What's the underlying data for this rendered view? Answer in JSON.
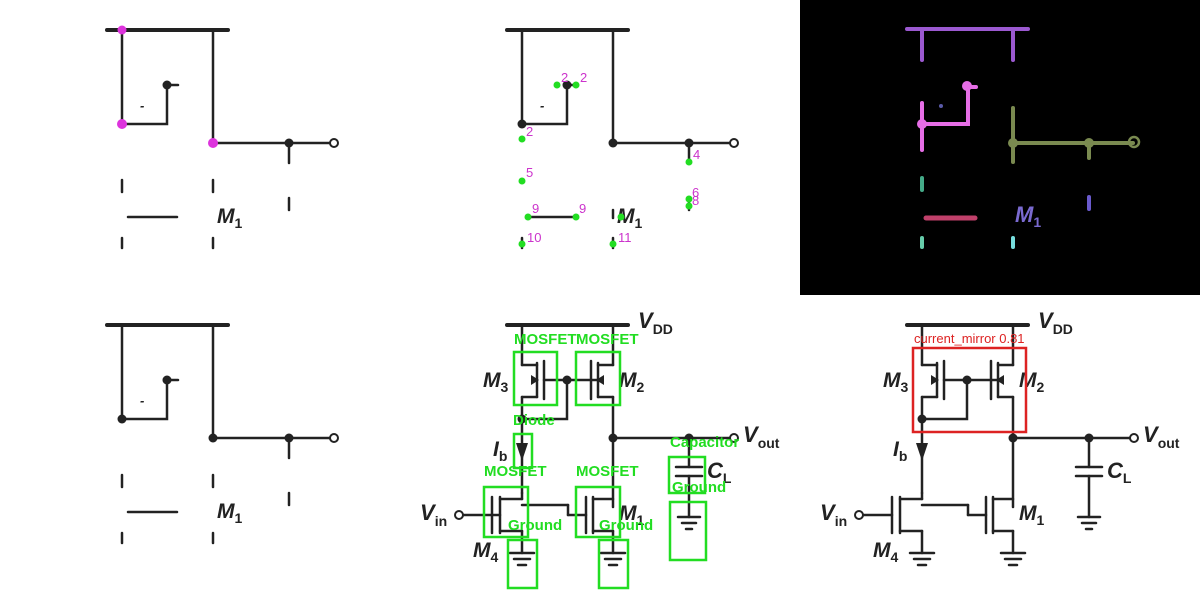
{
  "colors": {
    "ink": "#222222",
    "keypoint": "#dd33dd",
    "detect": "#22dd22",
    "mask_bg": "#000000",
    "group_box": "#dd2222",
    "mask_top": "#9b59d0",
    "mask_pink": "#e66ee6",
    "mask_olive": "#7a8a50",
    "mask_red": "#c0406a"
  },
  "circuit": {
    "m1_letter": "M",
    "m1_sub": "1",
    "m2_letter": "M",
    "m2_sub": "2",
    "m3_letter": "M",
    "m3_sub": "3",
    "m4_letter": "M",
    "m4_sub": "4",
    "vdd_letter": "V",
    "vdd_sub": "DD",
    "vout_letter": "V",
    "vout_sub": "out",
    "vin_letter": "V",
    "vin_sub": "in",
    "ib_letter": "I",
    "ib_sub": "b",
    "cl_letter": "C",
    "cl_sub": "L",
    "minus": "-"
  },
  "keypoints": {
    "labels": [
      "2",
      "2",
      "2",
      "5",
      "9",
      "9",
      "10",
      "11",
      "4",
      "6",
      "8"
    ]
  },
  "detections": {
    "mosfet": "MOSFET",
    "diode": "Diode",
    "capacitor": "Capacitor",
    "ground": "Ground"
  },
  "group": {
    "label": "current_mirror 0.81"
  }
}
